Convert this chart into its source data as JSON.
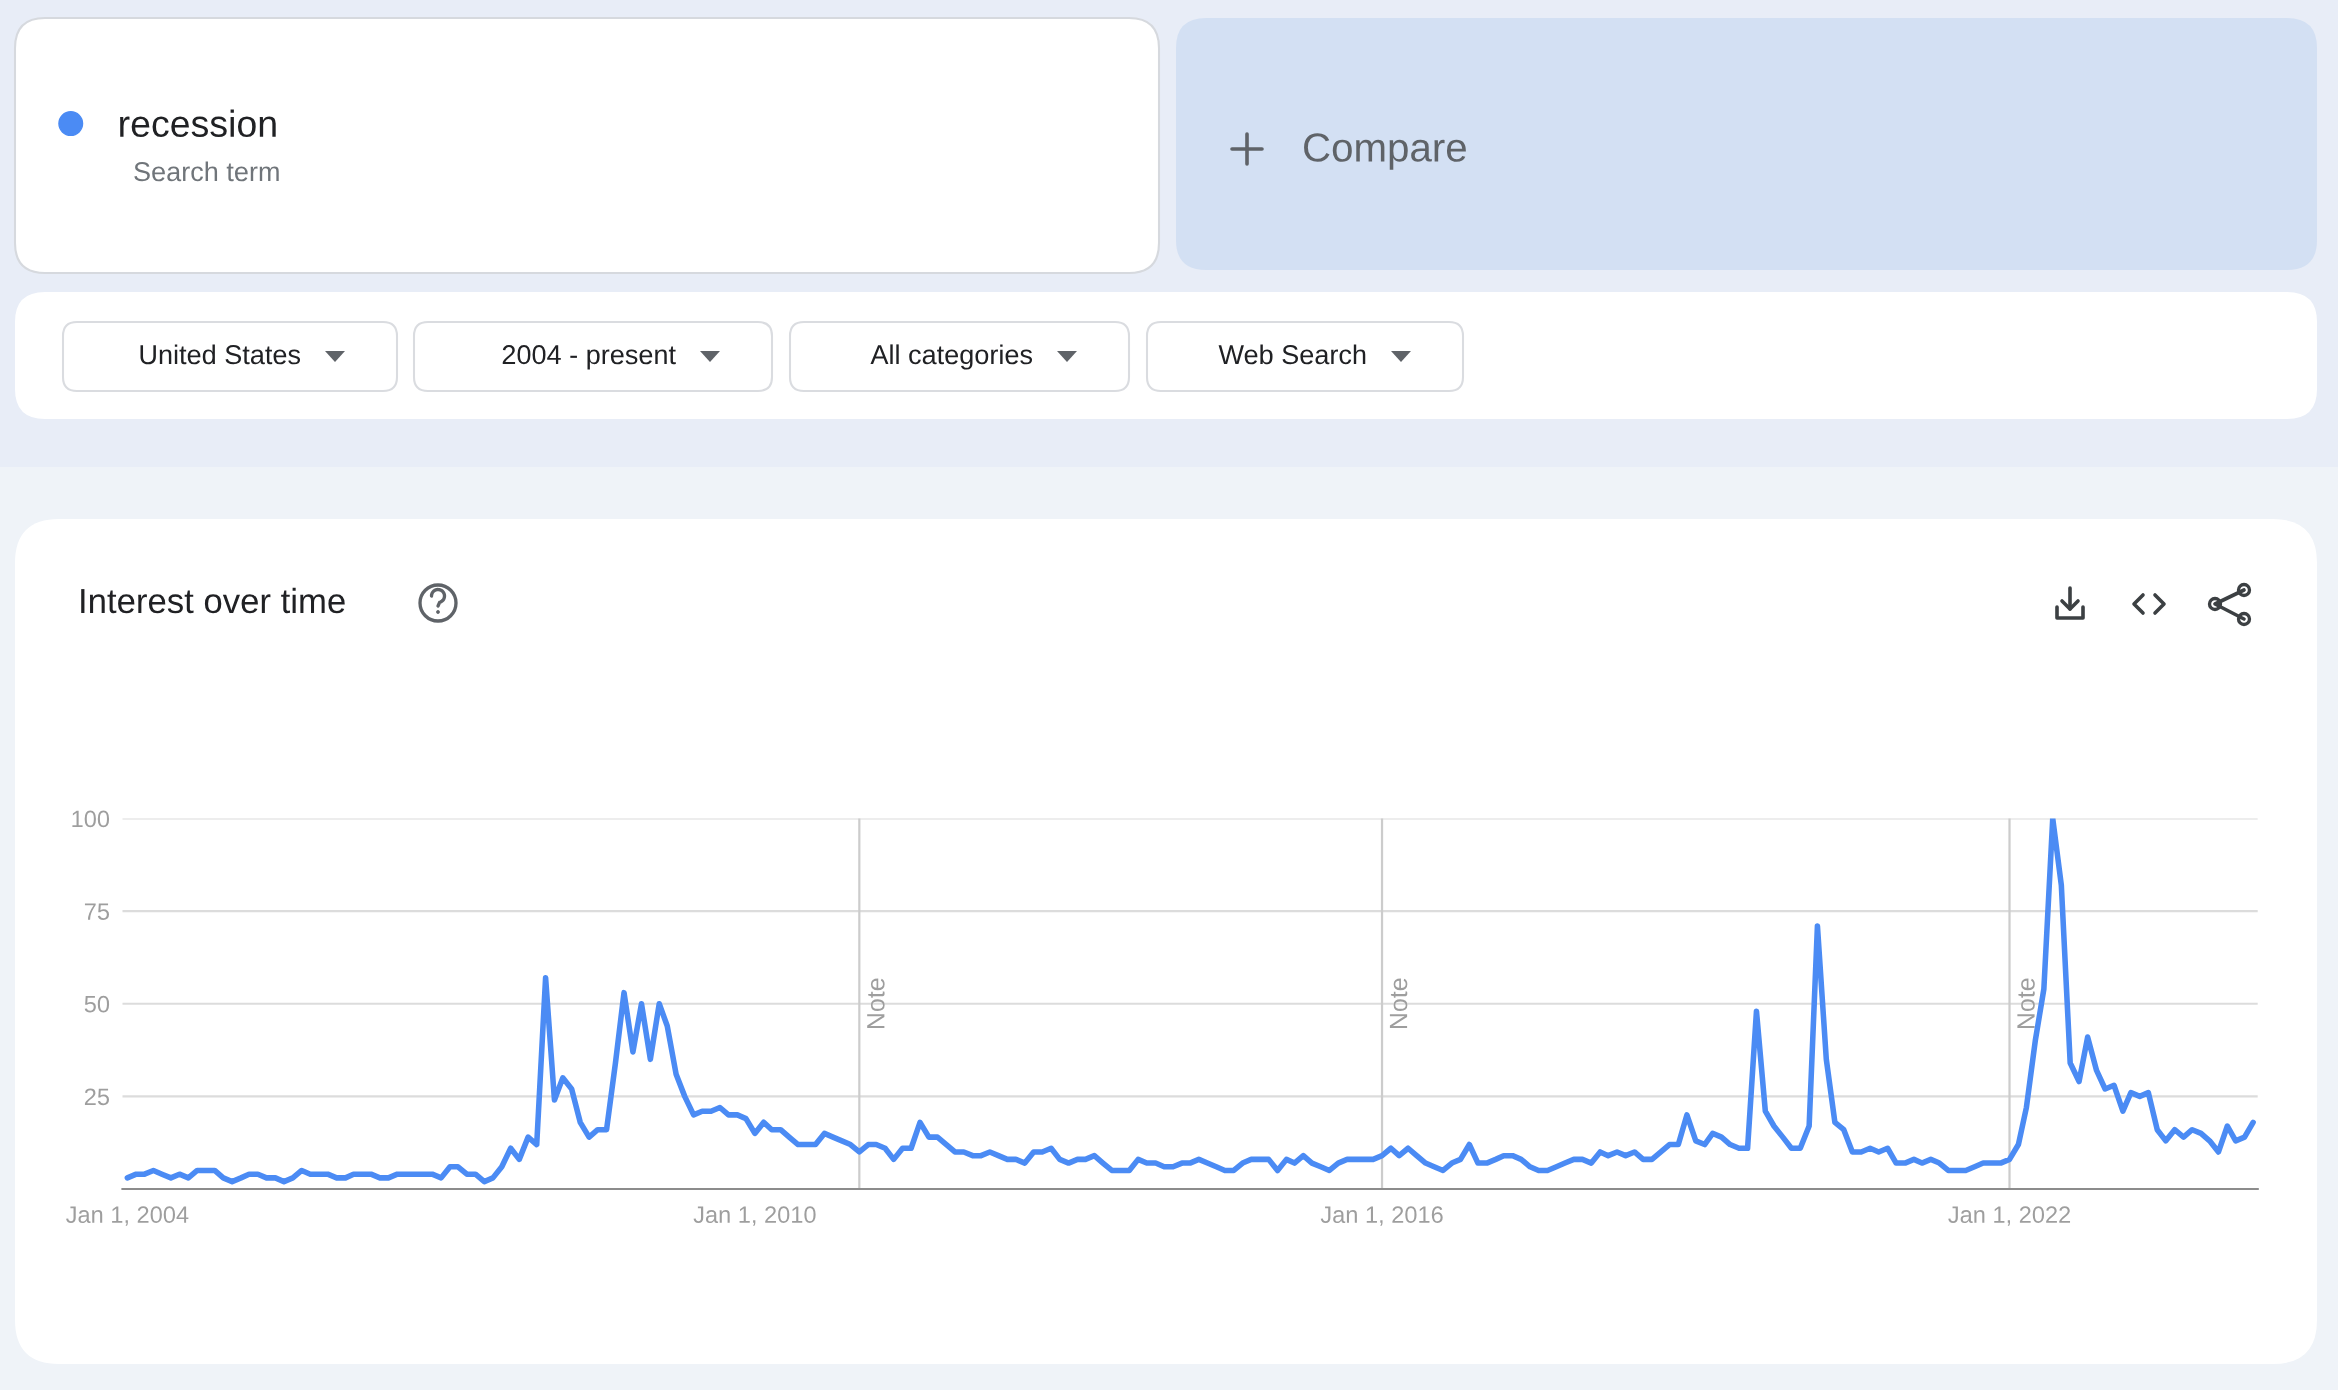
{
  "chart_data": {
    "type": "line",
    "title": "Interest over time",
    "x": [
      "2004-01",
      "2004-02",
      "2004-03",
      "2004-04",
      "2004-05",
      "2004-06",
      "2004-07",
      "2004-08",
      "2004-09",
      "2004-10",
      "2004-11",
      "2004-12",
      "2005-01",
      "2005-02",
      "2005-03",
      "2005-04",
      "2005-05",
      "2005-06",
      "2005-07",
      "2005-08",
      "2005-09",
      "2005-10",
      "2005-11",
      "2005-12",
      "2006-01",
      "2006-02",
      "2006-03",
      "2006-04",
      "2006-05",
      "2006-06",
      "2006-07",
      "2006-08",
      "2006-09",
      "2006-10",
      "2006-11",
      "2006-12",
      "2007-01",
      "2007-02",
      "2007-03",
      "2007-04",
      "2007-05",
      "2007-06",
      "2007-07",
      "2007-08",
      "2007-09",
      "2007-10",
      "2007-11",
      "2007-12",
      "2008-01",
      "2008-02",
      "2008-03",
      "2008-04",
      "2008-05",
      "2008-06",
      "2008-07",
      "2008-08",
      "2008-09",
      "2008-10",
      "2008-11",
      "2008-12",
      "2009-01",
      "2009-02",
      "2009-03",
      "2009-04",
      "2009-05",
      "2009-06",
      "2009-07",
      "2009-08",
      "2009-09",
      "2009-10",
      "2009-11",
      "2009-12",
      "2010-01",
      "2010-02",
      "2010-03",
      "2010-04",
      "2010-05",
      "2010-06",
      "2010-07",
      "2010-08",
      "2010-09",
      "2010-10",
      "2010-11",
      "2010-12",
      "2011-01",
      "2011-02",
      "2011-03",
      "2011-04",
      "2011-05",
      "2011-06",
      "2011-07",
      "2011-08",
      "2011-09",
      "2011-10",
      "2011-11",
      "2011-12",
      "2012-01",
      "2012-02",
      "2012-03",
      "2012-04",
      "2012-05",
      "2012-06",
      "2012-07",
      "2012-08",
      "2012-09",
      "2012-10",
      "2012-11",
      "2012-12",
      "2013-01",
      "2013-02",
      "2013-03",
      "2013-04",
      "2013-05",
      "2013-06",
      "2013-07",
      "2013-08",
      "2013-09",
      "2013-10",
      "2013-11",
      "2013-12",
      "2014-01",
      "2014-02",
      "2014-03",
      "2014-04",
      "2014-05",
      "2014-06",
      "2014-07",
      "2014-08",
      "2014-09",
      "2014-10",
      "2014-11",
      "2014-12",
      "2015-01",
      "2015-02",
      "2015-03",
      "2015-04",
      "2015-05",
      "2015-06",
      "2015-07",
      "2015-08",
      "2015-09",
      "2015-10",
      "2015-11",
      "2015-12",
      "2016-01",
      "2016-02",
      "2016-03",
      "2016-04",
      "2016-05",
      "2016-06",
      "2016-07",
      "2016-08",
      "2016-09",
      "2016-10",
      "2016-11",
      "2016-12",
      "2017-01",
      "2017-02",
      "2017-03",
      "2017-04",
      "2017-05",
      "2017-06",
      "2017-07",
      "2017-08",
      "2017-09",
      "2017-10",
      "2017-11",
      "2017-12",
      "2018-01",
      "2018-02",
      "2018-03",
      "2018-04",
      "2018-05",
      "2018-06",
      "2018-07",
      "2018-08",
      "2018-09",
      "2018-10",
      "2018-11",
      "2018-12",
      "2019-01",
      "2019-02",
      "2019-03",
      "2019-04",
      "2019-05",
      "2019-06",
      "2019-07",
      "2019-08",
      "2019-09",
      "2019-10",
      "2019-11",
      "2019-12",
      "2020-01",
      "2020-02",
      "2020-03",
      "2020-04",
      "2020-05",
      "2020-06",
      "2020-07",
      "2020-08",
      "2020-09",
      "2020-10",
      "2020-11",
      "2020-12",
      "2021-01",
      "2021-02",
      "2021-03",
      "2021-04",
      "2021-05",
      "2021-06",
      "2021-07",
      "2021-08",
      "2021-09",
      "2021-10",
      "2021-11",
      "2021-12",
      "2022-01",
      "2022-02",
      "2022-03",
      "2022-04",
      "2022-05",
      "2022-06",
      "2022-07",
      "2022-08",
      "2022-09",
      "2022-10",
      "2022-11",
      "2022-12",
      "2023-01",
      "2023-02",
      "2023-03",
      "2023-04",
      "2023-05",
      "2023-06",
      "2023-07",
      "2023-08",
      "2023-09",
      "2023-10",
      "2023-11",
      "2023-12",
      "2024-01",
      "2024-02",
      "2024-03",
      "2024-04",
      "2024-05"
    ],
    "series": [
      {
        "name": "recession",
        "color": "#4b8bf4",
        "values": [
          3,
          4,
          4,
          5,
          4,
          3,
          4,
          3,
          5,
          5,
          5,
          3,
          2,
          3,
          4,
          4,
          3,
          3,
          2,
          3,
          5,
          4,
          4,
          4,
          3,
          3,
          4,
          4,
          4,
          3,
          3,
          4,
          4,
          4,
          4,
          4,
          3,
          6,
          6,
          4,
          4,
          2,
          3,
          6,
          11,
          8,
          14,
          12,
          57,
          24,
          30,
          27,
          18,
          14,
          16,
          16,
          34,
          53,
          37,
          50,
          35,
          50,
          44,
          31,
          25,
          20,
          21,
          21,
          22,
          20,
          20,
          19,
          15,
          18,
          16,
          16,
          14,
          12,
          12,
          12,
          15,
          14,
          13,
          12,
          10,
          12,
          12,
          11,
          8,
          11,
          11,
          18,
          14,
          14,
          12,
          10,
          10,
          9,
          9,
          10,
          9,
          8,
          8,
          7,
          10,
          10,
          11,
          8,
          7,
          8,
          8,
          9,
          7,
          5,
          5,
          5,
          8,
          7,
          7,
          6,
          6,
          7,
          7,
          8,
          7,
          6,
          5,
          5,
          7,
          8,
          8,
          8,
          5,
          8,
          7,
          9,
          7,
          6,
          5,
          7,
          8,
          8,
          8,
          8,
          9,
          11,
          9,
          11,
          9,
          7,
          6,
          5,
          7,
          8,
          12,
          7,
          7,
          8,
          9,
          9,
          8,
          6,
          5,
          5,
          6,
          7,
          8,
          8,
          7,
          10,
          9,
          10,
          9,
          10,
          8,
          8,
          10,
          12,
          12,
          20,
          13,
          12,
          15,
          14,
          12,
          11,
          11,
          48,
          21,
          17,
          14,
          11,
          11,
          17,
          71,
          35,
          18,
          16,
          10,
          10,
          11,
          10,
          11,
          7,
          7,
          8,
          7,
          8,
          7,
          5,
          5,
          5,
          6,
          7,
          7,
          7,
          8,
          12,
          22,
          40,
          54,
          100,
          82,
          34,
          29,
          41,
          32,
          27,
          28,
          21,
          26,
          25,
          26,
          16,
          13,
          16,
          14,
          16,
          15,
          13,
          10,
          17,
          13,
          14,
          18
        ]
      }
    ],
    "xlim": [
      "2003-12-15",
      "2024-05-17"
    ],
    "xticks": [
      {
        "value": "2004-01-01",
        "label": "Jan 1, 2004"
      },
      {
        "value": "2010-01-01",
        "label": "Jan 1, 2010"
      },
      {
        "value": "2016-01-01",
        "label": "Jan 1, 2016"
      },
      {
        "value": "2022-01-01",
        "label": "Jan 1, 2022"
      }
    ],
    "ylim": [
      0,
      100
    ],
    "yticks": [
      25,
      50,
      75,
      100
    ],
    "grid": "y",
    "legend": "top left",
    "line_style": "solid",
    "ref_lines": [
      {
        "axis": "x",
        "value": "2011-01-01",
        "label": "Note",
        "color": "#cccccc"
      },
      {
        "axis": "x",
        "value": "2016-01-01",
        "label": "Note",
        "color": "#cccccc"
      },
      {
        "axis": "x",
        "value": "2022-01-01",
        "label": "Note",
        "color": "#cccccc"
      }
    ],
    "annotations": [
      "Search term",
      "Compare",
      "United States",
      "2004 - present",
      "All categories",
      "Web Search"
    ]
  }
}
